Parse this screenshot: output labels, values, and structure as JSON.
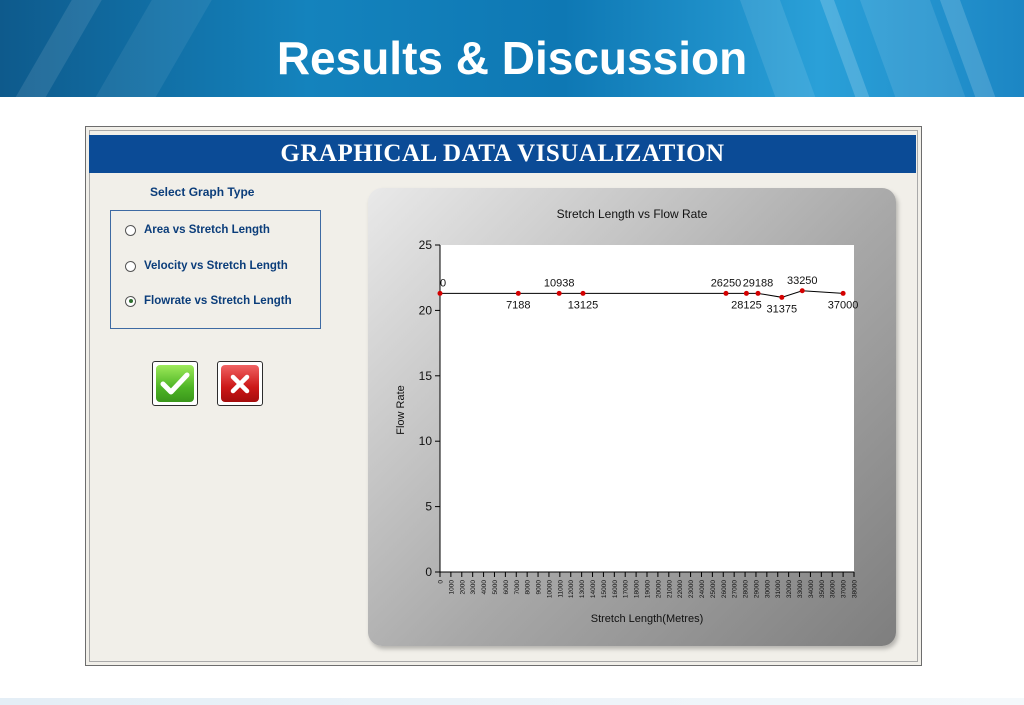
{
  "slide": {
    "title": "Results & Discussion"
  },
  "window": {
    "header": "GRAPHICAL DATA VISUALIZATION",
    "select_label": "Select Graph Type",
    "radio_options": [
      {
        "label": "Area vs Stretch Length",
        "checked": false
      },
      {
        "label": "Velocity vs Stretch Length",
        "checked": false
      },
      {
        "label": "Flowrate vs Stretch Length",
        "checked": true
      }
    ],
    "buttons": {
      "ok_icon": "checkmark-icon",
      "cancel_icon": "close-icon",
      "ok_color": "#4fb526",
      "cancel_color": "#cc1717"
    }
  },
  "chart_data": {
    "type": "line",
    "title": "Stretch Length vs Flow Rate",
    "xlabel": "Stretch Length(Metres)",
    "ylabel": "Flow Rate",
    "xlim": [
      0,
      38000
    ],
    "ylim": [
      0,
      25
    ],
    "xticks": [
      0,
      1000,
      2000,
      3000,
      4000,
      5000,
      6000,
      7000,
      8000,
      9000,
      10000,
      11000,
      12000,
      13000,
      14000,
      15000,
      16000,
      17000,
      18000,
      19000,
      20000,
      21000,
      22000,
      23000,
      24000,
      25000,
      26000,
      27000,
      28000,
      29000,
      30000,
      31000,
      32000,
      33000,
      34000,
      35000,
      36000,
      37000,
      38000
    ],
    "yticks": [
      0,
      5,
      10,
      15,
      20,
      25
    ],
    "grid": false,
    "series": [
      {
        "color": "#d40000",
        "points": [
          {
            "x": 0,
            "y": 21.3,
            "label": "0",
            "label_pos": "above"
          },
          {
            "x": 7188,
            "y": 21.3,
            "label": "7188",
            "label_pos": "below"
          },
          {
            "x": 10938,
            "y": 21.3,
            "label": "10938",
            "label_pos": "above"
          },
          {
            "x": 13125,
            "y": 21.3,
            "label": "13125",
            "label_pos": "below"
          },
          {
            "x": 26250,
            "y": 21.3,
            "label": "26250",
            "label_pos": "above"
          },
          {
            "x": 28125,
            "y": 21.3,
            "label": "28125",
            "label_pos": "below"
          },
          {
            "x": 29188,
            "y": 21.3,
            "label": "29188",
            "label_pos": "above"
          },
          {
            "x": 31375,
            "y": 21.0,
            "label": "31375",
            "label_pos": "below"
          },
          {
            "x": 33250,
            "y": 21.5,
            "label": "33250",
            "label_pos": "above"
          },
          {
            "x": 37000,
            "y": 21.3,
            "label": "37000",
            "label_pos": "below"
          }
        ]
      }
    ]
  }
}
